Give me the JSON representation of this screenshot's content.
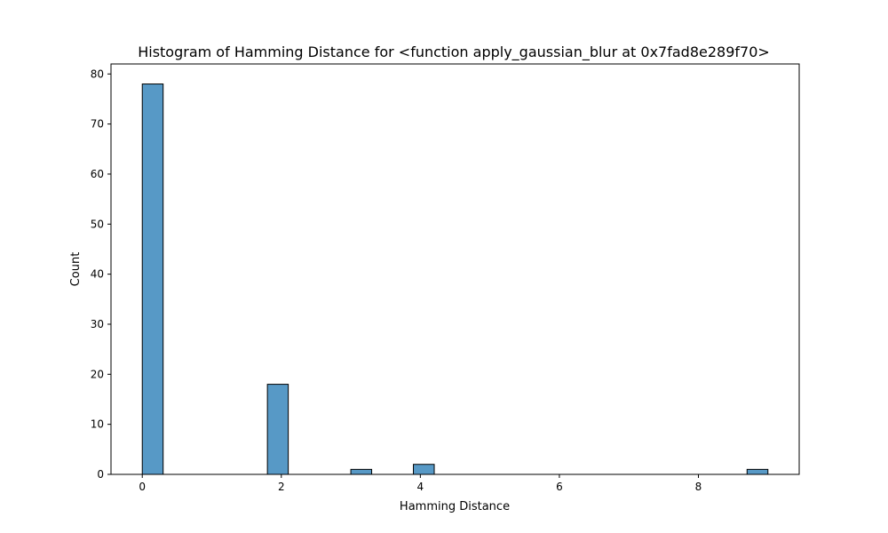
{
  "chart_data": {
    "type": "bar",
    "title": "Histogram of Hamming Distance for <function apply_gaussian_blur at 0x7fad8e289f70>",
    "xlabel": "Hamming Distance",
    "ylabel": "Count",
    "xlim": [
      -0.45,
      9.45
    ],
    "ylim": [
      0,
      82
    ],
    "xticks": [
      0,
      2,
      4,
      6,
      8
    ],
    "yticks": [
      0,
      10,
      20,
      30,
      40,
      50,
      60,
      70,
      80
    ],
    "grid": false,
    "bin_width": 0.3,
    "bins": [
      {
        "x0": 0.0,
        "x1": 0.3,
        "count": 78
      },
      {
        "x0": 1.8,
        "x1": 2.1,
        "count": 18
      },
      {
        "x0": 3.0,
        "x1": 3.3,
        "count": 1
      },
      {
        "x0": 3.9,
        "x1": 4.2,
        "count": 2
      },
      {
        "x0": 8.7,
        "x1": 9.0,
        "count": 1
      }
    ],
    "colors": {
      "bar_fill": "#5799c6",
      "bar_edge": "#000000",
      "axes": "#000000"
    }
  }
}
